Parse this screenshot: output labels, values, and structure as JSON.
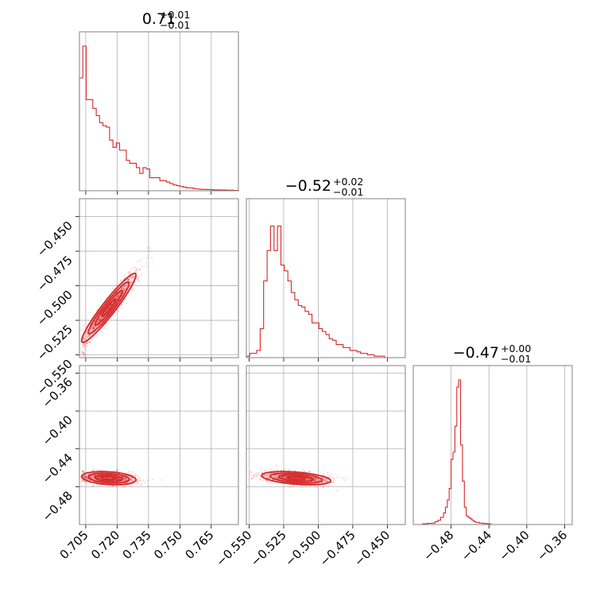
{
  "colors": {
    "accent": "#d62728",
    "grid": "#b0b0b0",
    "frame": "#808080"
  },
  "chart_data": {
    "type": "corner",
    "parameters": [
      {
        "title": {
          "median": "0.71",
          "plus": "+0.01",
          "minus": "−0.01"
        },
        "range": [
          0.702,
          0.778
        ],
        "ticks": [
          0.705,
          0.72,
          0.735,
          0.75,
          0.765
        ],
        "tick_labels": [
          "0.705",
          "0.720",
          "0.735",
          "0.750",
          "0.765"
        ],
        "hist": {
          "bin_width": 0.0016,
          "counts": [
            0.78,
            1.0,
            0.63,
            0.63,
            0.57,
            0.52,
            0.47,
            0.45,
            0.44,
            0.35,
            0.3,
            0.33,
            0.28,
            0.28,
            0.21,
            0.19,
            0.19,
            0.16,
            0.12,
            0.16,
            0.15,
            0.09,
            0.09,
            0.09,
            0.07,
            0.07,
            0.06,
            0.05,
            0.04,
            0.035,
            0.03,
            0.025,
            0.02,
            0.02,
            0.015,
            0.012,
            0.01,
            0.01,
            0.008,
            0.008,
            0.006,
            0.006,
            0.005,
            0.005,
            0.004,
            0.004,
            0.003,
            0.003
          ]
        }
      },
      {
        "title": {
          "median": "−0.52",
          "plus": "+0.02",
          "minus": "−0.01"
        },
        "range": [
          -0.552,
          -0.437
        ],
        "ticks": [
          -0.55,
          -0.525,
          -0.5,
          -0.475,
          -0.45
        ],
        "tick_labels": [
          "−0.550",
          "−0.525",
          "−0.500",
          "−0.475",
          "−0.450"
        ],
        "hist": {
          "bin_width": 0.0025,
          "counts": [
            0.01,
            0.03,
            0.03,
            0.05,
            0.2,
            0.53,
            0.74,
            0.91,
            0.74,
            0.91,
            0.64,
            0.6,
            0.53,
            0.45,
            0.4,
            0.36,
            0.35,
            0.32,
            0.3,
            0.24,
            0.24,
            0.2,
            0.18,
            0.16,
            0.13,
            0.12,
            0.09,
            0.09,
            0.07,
            0.07,
            0.05,
            0.05,
            0.04,
            0.03,
            0.03,
            0.02,
            0.02,
            0.01,
            0.01,
            0.01
          ]
        }
      },
      {
        "title": {
          "median": "−0.47",
          "plus": "+0.00",
          "minus": "−0.01"
        },
        "range": [
          -0.52,
          -0.352
        ],
        "ticks": [
          -0.48,
          -0.44,
          -0.4,
          -0.36
        ],
        "tick_labels": [
          "−0.48",
          "−0.44",
          "−0.40",
          "−0.36"
        ],
        "hist": {
          "x": [
            -0.51,
            -0.505,
            -0.5,
            -0.497,
            -0.494,
            -0.491,
            -0.488,
            -0.486,
            -0.484,
            -0.482,
            -0.48,
            -0.478,
            -0.476,
            -0.474,
            -0.472,
            -0.47,
            -0.468,
            -0.466,
            -0.464,
            -0.462,
            -0.46,
            -0.458,
            -0.456,
            -0.454,
            -0.45,
            -0.446,
            -0.442
          ],
          "counts": [
            0.005,
            0.008,
            0.01,
            0.02,
            0.03,
            0.05,
            0.08,
            0.12,
            0.17,
            0.25,
            0.45,
            0.5,
            0.68,
            0.95,
            1.0,
            0.55,
            0.3,
            0.12,
            0.06,
            0.05,
            0.04,
            0.03,
            0.02,
            0.015,
            0.01,
            0.007,
            0.005
          ]
        }
      }
    ],
    "pairs": [
      {
        "x_param": 0,
        "y_param": 1,
        "mean": [
          0.716,
          -0.516
        ],
        "sd": [
          0.0065,
          0.0125
        ],
        "rho": 0.95
      },
      {
        "x_param": 0,
        "y_param": 2,
        "mean": [
          0.716,
          -0.471
        ],
        "sd": [
          0.0065,
          0.0035
        ],
        "rho": -0.25
      },
      {
        "x_param": 1,
        "y_param": 2,
        "mean": [
          -0.516,
          -0.471
        ],
        "sd": [
          0.0125,
          0.0035
        ],
        "rho": -0.4
      }
    ]
  }
}
